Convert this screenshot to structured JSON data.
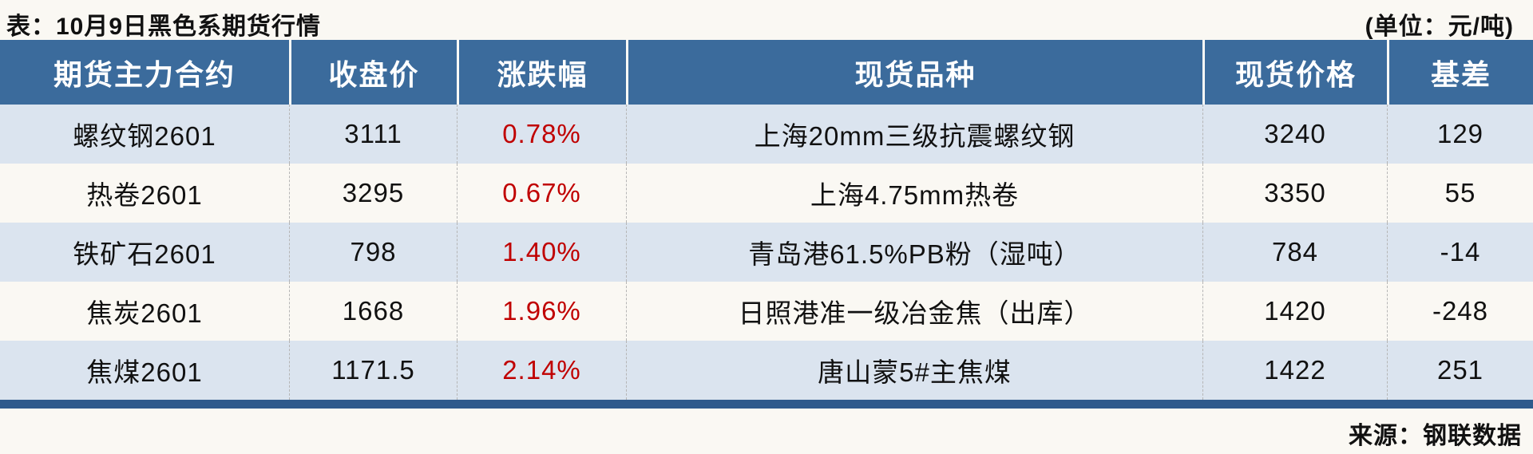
{
  "page": {
    "title": "表：10月9日黑色系期货行情",
    "unit": "(单位：元/吨)",
    "source": "来源：钢联数据"
  },
  "table": {
    "columns": {
      "contract": "期货主力合约",
      "close": "收盘价",
      "change": "涨跌幅",
      "spot": "现货品种",
      "spot_price": "现货价格",
      "basis": "基差"
    },
    "rows": [
      {
        "contract": "螺纹钢2601",
        "close": "3111",
        "change": "0.78%",
        "spot": "上海20mm三级抗震螺纹钢",
        "spot_price": "3240",
        "basis": "129"
      },
      {
        "contract": "热卷2601",
        "close": "3295",
        "change": "0.67%",
        "spot": "上海4.75mm热卷",
        "spot_price": "3350",
        "basis": "55"
      },
      {
        "contract": "铁矿石2601",
        "close": "798",
        "change": "1.40%",
        "spot": "青岛港61.5%PB粉（湿吨）",
        "spot_price": "784",
        "basis": "-14"
      },
      {
        "contract": "焦炭2601",
        "close": "1668",
        "change": "1.96%",
        "spot": "日照港准一级冶金焦（出库）",
        "spot_price": "1420",
        "basis": "-248"
      },
      {
        "contract": "焦煤2601",
        "close": "1171.5",
        "change": "2.14%",
        "spot": "唐山蒙5#主焦煤",
        "spot_price": "1422",
        "basis": "251"
      }
    ]
  },
  "chart_data": {
    "type": "table",
    "title": "表：10月9日黑色系期货行情",
    "unit": "元/吨",
    "columns": [
      "期货主力合约",
      "收盘价",
      "涨跌幅",
      "现货品种",
      "现货价格",
      "基差"
    ],
    "rows": [
      [
        "螺纹钢2601",
        3111,
        "0.78%",
        "上海20mm三级抗震螺纹钢",
        3240,
        129
      ],
      [
        "热卷2601",
        3295,
        "0.67%",
        "上海4.75mm热卷",
        3350,
        55
      ],
      [
        "铁矿石2601",
        798,
        "1.40%",
        "青岛港61.5%PB粉（湿吨）",
        784,
        -14
      ],
      [
        "焦炭2601",
        1668,
        "1.96%",
        "日照港准一级冶金焦（出库）",
        1420,
        -248
      ],
      [
        "焦煤2601",
        1171.5,
        "2.14%",
        "唐山蒙5#主焦煤",
        1422,
        251
      ]
    ],
    "source": "钢联数据"
  },
  "colors": {
    "header-bg": "#3b6b9c",
    "alt-row-bg": "#dbe4ef",
    "bottom-rule": "#2e5a8c",
    "change-red": "#c00000",
    "page-bg": "#faf8f3"
  }
}
